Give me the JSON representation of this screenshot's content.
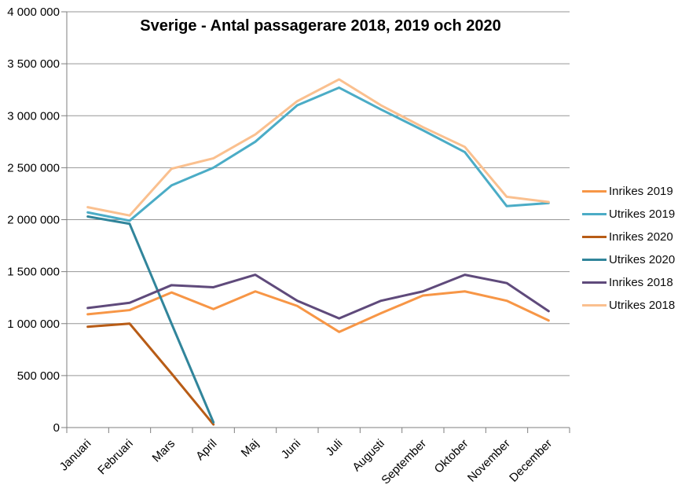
{
  "chart_data": {
    "type": "line",
    "title": "Sverige - Antal passagerare 2018, 2019 och 2020",
    "xlabel": "",
    "ylabel": "",
    "categories": [
      "Januari",
      "Februari",
      "Mars",
      "April",
      "Maj",
      "Juni",
      "Juli",
      "Augusti",
      "September",
      "Oktober",
      "November",
      "December"
    ],
    "y_axis": {
      "min": 0,
      "max": 4000000,
      "step": 500000,
      "tick_labels": [
        "4 000 000",
        "3 500 000",
        "3 000 000",
        "2 500 000",
        "2 000 000",
        "1 500 000",
        "1 000 000",
        "500 000",
        "0"
      ]
    },
    "grid": "horizontal",
    "legend_position": "right",
    "colors": {
      "grid": "#969696",
      "axis": "#7f7f7f",
      "text": "#000000"
    },
    "series": [
      {
        "name": "Inrikes 2019",
        "color": "#F79646",
        "values": [
          1090000,
          1130000,
          1300000,
          1140000,
          1310000,
          1170000,
          920000,
          1100000,
          1270000,
          1310000,
          1220000,
          1030000
        ]
      },
      {
        "name": "Utrikes 2019",
        "color": "#4BACC6",
        "values": [
          2070000,
          1990000,
          2330000,
          2500000,
          2750000,
          3100000,
          3270000,
          3060000,
          2860000,
          2650000,
          2130000,
          2160000
        ]
      },
      {
        "name": "Inrikes 2020",
        "color": "#B85C16",
        "values": [
          970000,
          1000000,
          520000,
          30000,
          null,
          null,
          null,
          null,
          null,
          null,
          null,
          null
        ]
      },
      {
        "name": "Utrikes 2020",
        "color": "#31859B",
        "values": [
          2030000,
          1960000,
          1000000,
          50000,
          null,
          null,
          null,
          null,
          null,
          null,
          null,
          null
        ]
      },
      {
        "name": "Inrikes 2018",
        "color": "#5F4A7B",
        "values": [
          1150000,
          1200000,
          1370000,
          1350000,
          1470000,
          1220000,
          1050000,
          1220000,
          1310000,
          1470000,
          1390000,
          1120000
        ]
      },
      {
        "name": "Utrikes 2018",
        "color": "#FAC08F",
        "values": [
          2120000,
          2040000,
          2490000,
          2590000,
          2820000,
          3140000,
          3350000,
          3100000,
          2890000,
          2700000,
          2220000,
          2170000
        ]
      }
    ]
  }
}
